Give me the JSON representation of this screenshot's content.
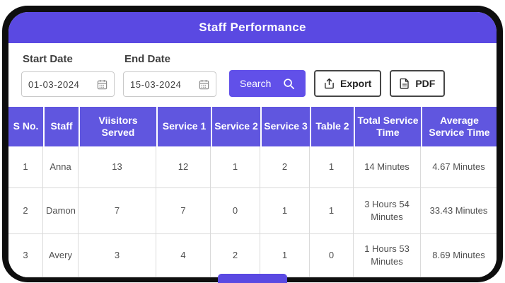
{
  "header": {
    "title": "Staff Performance"
  },
  "filters": {
    "start_date": {
      "label": "Start Date",
      "value": "01-03-2024",
      "icon": "calendar-icon"
    },
    "end_date": {
      "label": "End Date",
      "value": "15-03-2024",
      "icon": "calendar-icon"
    },
    "search_label": "Search",
    "export_label": "Export",
    "pdf_label": "PDF"
  },
  "table": {
    "columns": [
      "S No.",
      "Staff",
      "Viisitors Served",
      "Service 1",
      "Service 2",
      "Service 3",
      "Table 2",
      "Total Service Time",
      "Average Service Time"
    ],
    "rows": [
      [
        "1",
        "Anna",
        "13",
        "12",
        "1",
        "2",
        "1",
        "14 Minutes",
        "4.67 Minutes"
      ],
      [
        "2",
        "Damon",
        "7",
        "7",
        "0",
        "1",
        "1",
        "3 Hours 54 Minutes",
        "33.43 Minutes"
      ],
      [
        "3",
        "Avery",
        "3",
        "4",
        "2",
        "1",
        "0",
        "1 Hours 53 Minutes",
        "8.69 Minutes"
      ]
    ]
  },
  "colors": {
    "accent": "#5a49e2",
    "table_header": "#6056df",
    "search_button": "#6150e9",
    "frame": "#0e0e0e"
  }
}
